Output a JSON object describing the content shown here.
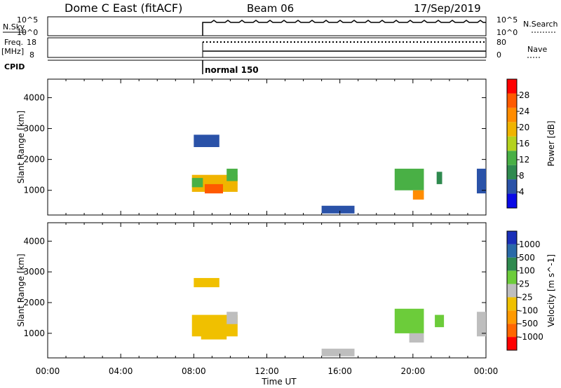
{
  "header": {
    "station": "Dome C East (fitACF)",
    "beam": "Beam 06",
    "date": "17/Sep/2019"
  },
  "strips": {
    "nsky_label": "N.Sky",
    "nsky_ticks": [
      "10^5",
      "10^0"
    ],
    "nsearch_label": "N.Search",
    "nsearch_ticks": [
      "10^5",
      "10^0"
    ],
    "freq_label": "Freq.",
    "freq_unit": "[MHz]",
    "freq_ticks": [
      "18",
      "8"
    ],
    "nave_label": "Nave",
    "nave_ticks": [
      "80",
      "0"
    ],
    "cpid_label": "CPID",
    "cpid_value": "normal 150"
  },
  "colors": {
    "power_scale": [
      "#0a0ae6",
      "#2a52a8",
      "#2f8a4f",
      "#49b045",
      "#b4d21e",
      "#f0b400",
      "#ff8c00",
      "#ff5a00",
      "#ff0000"
    ],
    "velocity_scale": [
      "#1a2fb8",
      "#2a6aa8",
      "#2f8a4f",
      "#6ccc3a",
      "#bebebe",
      "#f0c000",
      "#ff9a00",
      "#ff6600",
      "#ff0000"
    ]
  },
  "chart_data": [
    {
      "type": "heatmap",
      "title": "",
      "xlabel": "Time UT",
      "ylabel": "Slant Range [km]",
      "x_ticks": [
        "00:00",
        "04:00",
        "08:00",
        "12:00",
        "16:00",
        "20:00",
        "00:00"
      ],
      "y_ticks": [
        "4000",
        "3000",
        "2000",
        "1000"
      ],
      "ylim": [
        200,
        4600
      ],
      "colorbar": {
        "label": "Power [dB]",
        "ticks": [
          "28",
          "24",
          "20",
          "16",
          "12",
          "8",
          "4"
        ],
        "range": [
          0,
          32
        ]
      },
      "echo_regions": [
        {
          "t0": 7.9,
          "t1": 10.4,
          "r0": 950,
          "r1": 1500,
          "level": 20
        },
        {
          "t0": 8.6,
          "t1": 9.6,
          "r0": 900,
          "r1": 1200,
          "level": 28
        },
        {
          "t0": 7.9,
          "t1": 8.5,
          "r0": 1100,
          "r1": 1400,
          "level": 12
        },
        {
          "t0": 9.8,
          "t1": 10.4,
          "r0": 1300,
          "r1": 1700,
          "level": 14
        },
        {
          "t0": 8.0,
          "t1": 9.4,
          "r0": 2400,
          "r1": 2800,
          "level": 6
        },
        {
          "t0": 15.0,
          "t1": 16.8,
          "r0": 250,
          "r1": 500,
          "level": 5
        },
        {
          "t0": 19.0,
          "t1": 20.6,
          "r0": 1000,
          "r1": 1700,
          "level": 12
        },
        {
          "t0": 20.0,
          "t1": 20.6,
          "r0": 700,
          "r1": 1000,
          "level": 22
        },
        {
          "t0": 21.3,
          "t1": 21.6,
          "r0": 1200,
          "r1": 1600,
          "level": 10
        },
        {
          "t0": 23.5,
          "t1": 24.0,
          "r0": 900,
          "r1": 1700,
          "level": 6
        }
      ]
    },
    {
      "type": "heatmap",
      "title": "",
      "xlabel": "Time UT",
      "ylabel": "Slant Range [km]",
      "x_ticks": [
        "00:00",
        "04:00",
        "08:00",
        "12:00",
        "16:00",
        "20:00",
        "00:00"
      ],
      "y_ticks": [
        "4000",
        "3000",
        "2000",
        "1000"
      ],
      "ylim": [
        200,
        4600
      ],
      "colorbar": {
        "label": "Velocity [m s^-1]",
        "ticks": [
          "1000",
          "500",
          "100",
          "25",
          "-25",
          "-100",
          "-500",
          "-1000"
        ],
        "range": [
          -1200,
          1200
        ]
      },
      "echo_regions": [
        {
          "t0": 7.9,
          "t1": 10.4,
          "r0": 900,
          "r1": 1600,
          "level": -300
        },
        {
          "t0": 8.4,
          "t1": 9.8,
          "r0": 800,
          "r1": 1200,
          "level": -250
        },
        {
          "t0": 9.8,
          "t1": 10.4,
          "r0": 1300,
          "r1": 1700,
          "level": -120
        },
        {
          "t0": 8.0,
          "t1": 9.4,
          "r0": 2500,
          "r1": 2800,
          "level": -200
        },
        {
          "t0": 15.0,
          "t1": 16.8,
          "r0": 250,
          "r1": 500,
          "level": 60
        },
        {
          "t0": 19.0,
          "t1": 20.6,
          "r0": 1000,
          "r1": 1800,
          "level": 300
        },
        {
          "t0": 19.8,
          "t1": 20.6,
          "r0": 700,
          "r1": 1000,
          "level": 80
        },
        {
          "t0": 21.2,
          "t1": 21.7,
          "r0": 1200,
          "r1": 1600,
          "level": 200
        },
        {
          "t0": 23.5,
          "t1": 24.0,
          "r0": 900,
          "r1": 1700,
          "level": 100
        }
      ]
    }
  ]
}
